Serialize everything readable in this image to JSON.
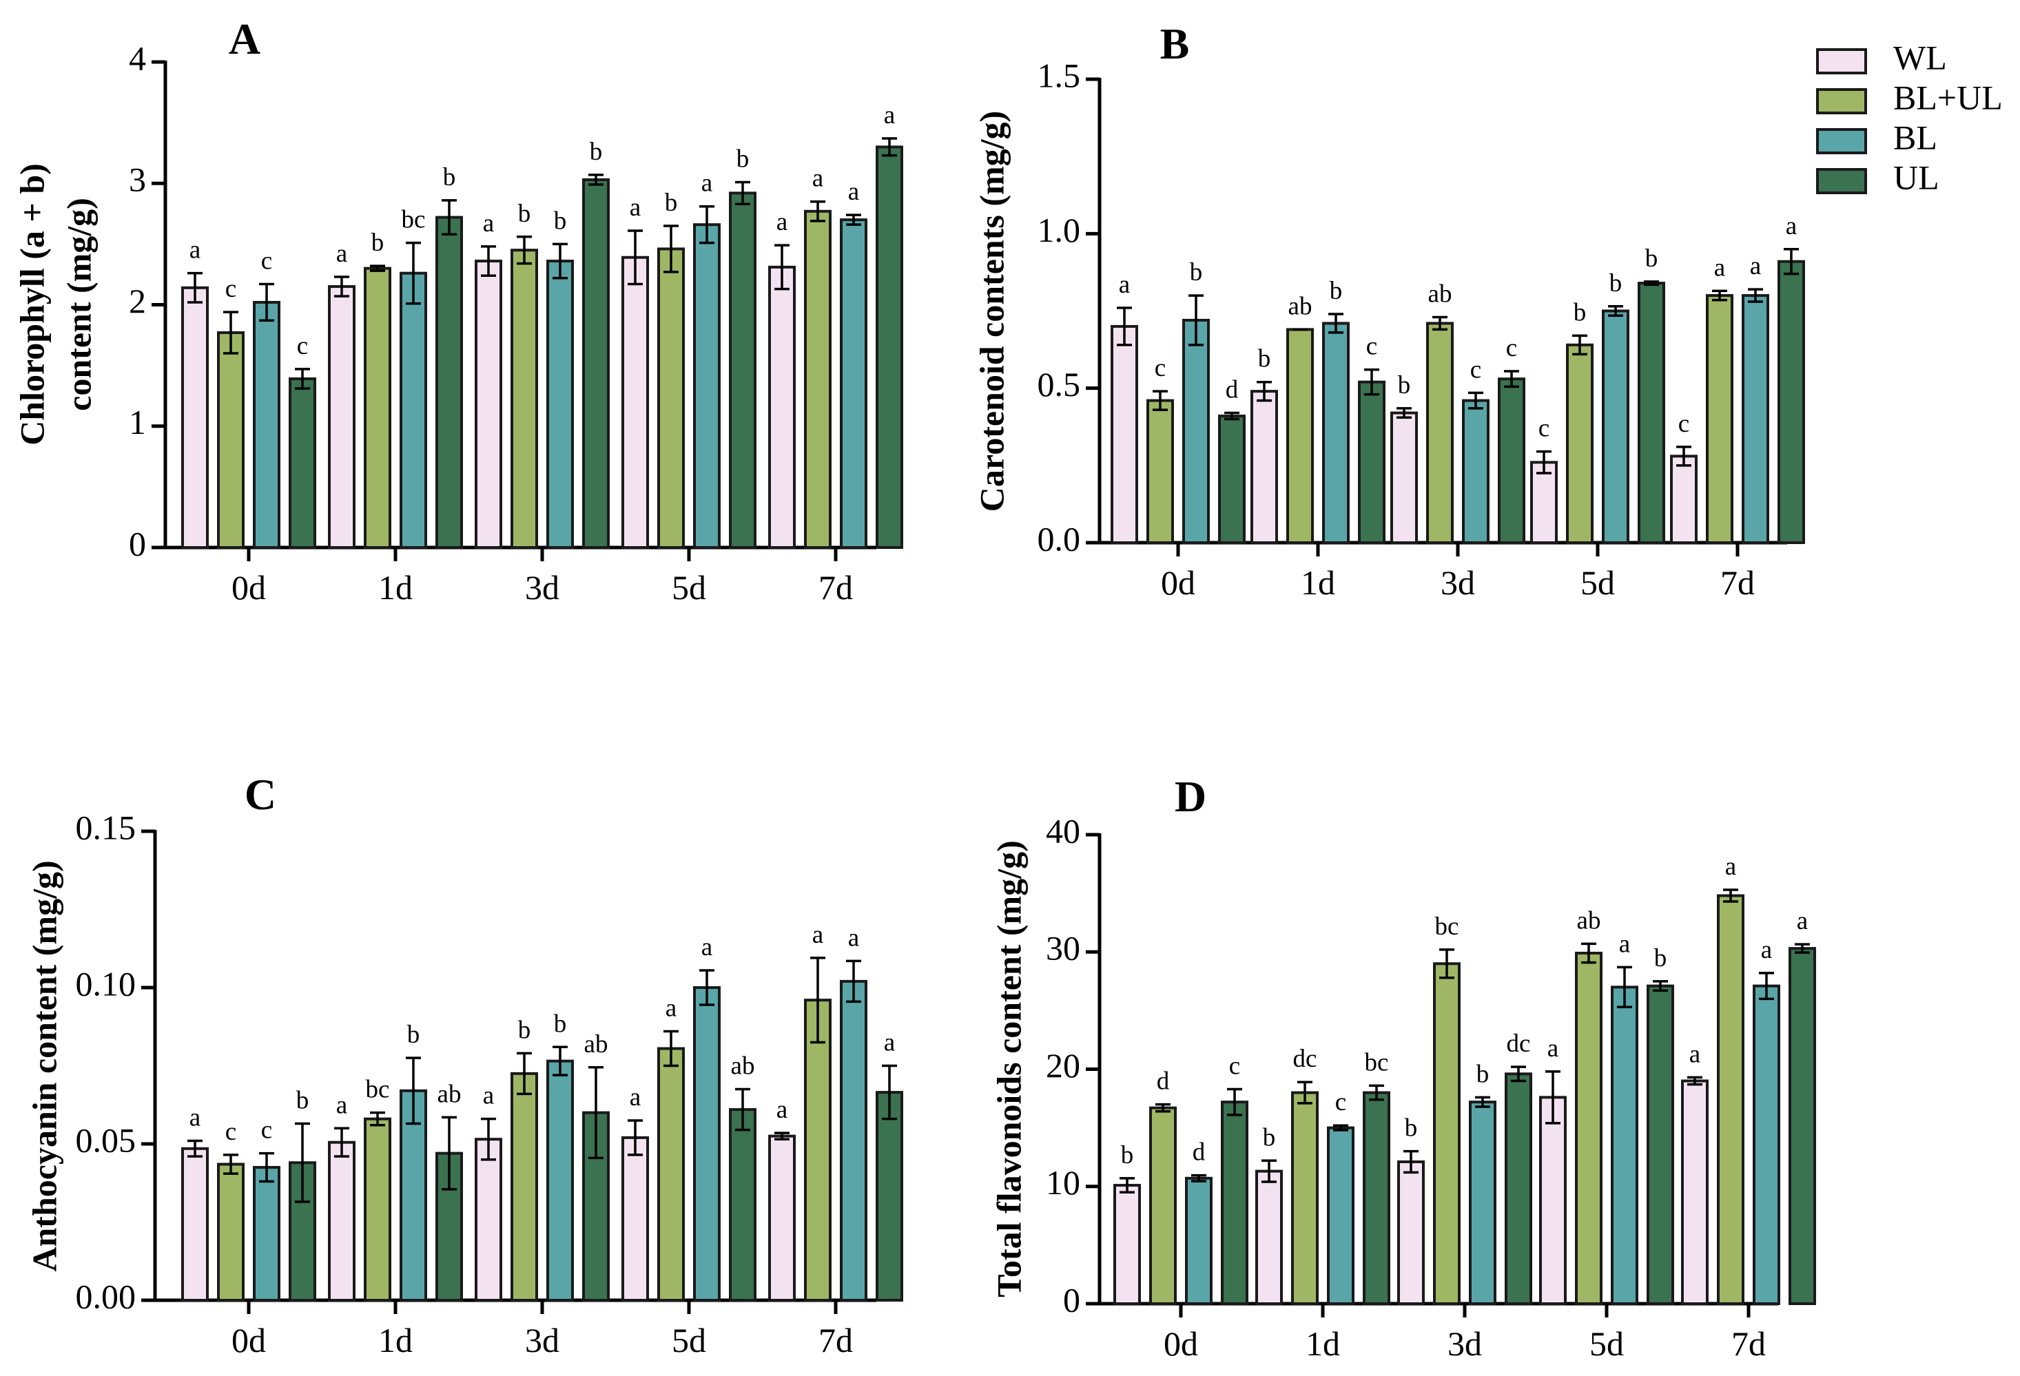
{
  "chart_data": [
    {
      "type": "bar",
      "panel": "A",
      "title": "A",
      "xlabel": "",
      "ylabel": "Chlorophyll (a + b) content (mg/g)",
      "ylabel_lines": [
        "Chlorophyll (a + b)",
        "content (mg/g)"
      ],
      "ylim": [
        0,
        4
      ],
      "yticks": [
        "0",
        "1",
        "2",
        "3",
        "4"
      ],
      "categories": [
        "0d",
        "1d",
        "3d",
        "5d",
        "7d"
      ],
      "series": [
        {
          "name": "WL",
          "values": [
            2.14,
            2.15,
            2.36,
            2.39,
            2.31
          ],
          "errors": [
            0.12,
            0.08,
            0.12,
            0.22,
            0.18
          ],
          "labels": [
            "a",
            "a",
            "a",
            "a",
            "a"
          ]
        },
        {
          "name": "BL+UL",
          "values": [
            1.77,
            2.3,
            2.45,
            2.46,
            2.77
          ],
          "errors": [
            0.17,
            0.02,
            0.11,
            0.19,
            0.08
          ],
          "labels": [
            "c",
            "b",
            "b",
            "b",
            "a"
          ]
        },
        {
          "name": "BL",
          "values": [
            2.02,
            2.26,
            2.36,
            2.66,
            2.7
          ],
          "errors": [
            0.15,
            0.25,
            0.14,
            0.15,
            0.04
          ],
          "labels": [
            "c",
            "bc",
            "b",
            "a",
            "a"
          ]
        },
        {
          "name": "UL",
          "values": [
            1.39,
            2.72,
            3.03,
            2.92,
            3.3
          ],
          "errors": [
            0.08,
            0.14,
            0.04,
            0.09,
            0.07
          ],
          "labels": [
            "c",
            "b",
            "b",
            "b",
            "a"
          ]
        }
      ]
    },
    {
      "type": "bar",
      "panel": "B",
      "title": "B",
      "xlabel": "",
      "ylabel": "Carotenoid contents (mg/g)",
      "ylabel_lines": [
        "Carotenoid contents (mg/g)"
      ],
      "ylim": [
        0,
        1.5
      ],
      "yticks": [
        "0.0",
        "0.5",
        "1.0",
        "1.5"
      ],
      "categories": [
        "0d",
        "1d",
        "3d",
        "5d",
        "7d"
      ],
      "series": [
        {
          "name": "WL",
          "values": [
            0.7,
            0.49,
            0.42,
            0.26,
            0.28
          ],
          "errors": [
            0.06,
            0.03,
            0.015,
            0.035,
            0.03
          ],
          "labels": [
            "a",
            "b",
            "b",
            "c",
            "c"
          ]
        },
        {
          "name": "BL+UL",
          "values": [
            0.46,
            0.69,
            0.71,
            0.64,
            0.8
          ],
          "errors": [
            0.03,
            0.0,
            0.02,
            0.03,
            0.015
          ],
          "labels": [
            "c",
            "ab",
            "ab",
            "b",
            "a"
          ]
        },
        {
          "name": "BL",
          "values": [
            0.72,
            0.71,
            0.46,
            0.75,
            0.8
          ],
          "errors": [
            0.08,
            0.03,
            0.025,
            0.015,
            0.02
          ],
          "labels": [
            "b",
            "b",
            "c",
            "b",
            "a"
          ]
        },
        {
          "name": "UL",
          "values": [
            0.41,
            0.52,
            0.53,
            0.84,
            0.91
          ],
          "errors": [
            0.01,
            0.04,
            0.025,
            0.005,
            0.04
          ],
          "labels": [
            "d",
            "c",
            "c",
            "b",
            "a"
          ]
        }
      ]
    },
    {
      "type": "bar",
      "panel": "C",
      "title": "C",
      "xlabel": "",
      "ylabel": "Anthocyanin content (mg/g)",
      "ylabel_lines": [
        "Anthocyanin content (mg/g)"
      ],
      "ylim": [
        0,
        0.15
      ],
      "yticks": [
        "0.00",
        "0.05",
        "0.10",
        "0.15"
      ],
      "categories": [
        "0d",
        "1d",
        "3d",
        "5d",
        "7d"
      ],
      "series": [
        {
          "name": "WL",
          "values": [
            0.0485,
            0.0505,
            0.0515,
            0.052,
            0.0525
          ],
          "errors": [
            0.0025,
            0.0045,
            0.0065,
            0.0055,
            0.001
          ],
          "labels": [
            "a",
            "a",
            "a",
            "a",
            "a"
          ]
        },
        {
          "name": "BL+UL",
          "values": [
            0.0435,
            0.058,
            0.0725,
            0.0805,
            0.096
          ],
          "errors": [
            0.003,
            0.002,
            0.0065,
            0.0055,
            0.0135
          ],
          "labels": [
            "c",
            "bc",
            "b",
            "a",
            "a"
          ]
        },
        {
          "name": "BL",
          "values": [
            0.0425,
            0.067,
            0.0765,
            0.1,
            0.102
          ],
          "errors": [
            0.0045,
            0.0105,
            0.0045,
            0.0055,
            0.0065
          ],
          "labels": [
            "c",
            "b",
            "b",
            "a",
            "a"
          ]
        },
        {
          "name": "UL",
          "values": [
            0.044,
            0.047,
            0.06,
            0.061,
            0.0665
          ],
          "errors": [
            0.0125,
            0.0115,
            0.0145,
            0.0065,
            0.0085
          ],
          "labels": [
            "b",
            "ab",
            "ab",
            "ab",
            "a"
          ]
        }
      ]
    },
    {
      "type": "bar",
      "panel": "D",
      "title": "D",
      "xlabel": "",
      "ylabel": "Total flavonoids content (mg/g)",
      "ylabel_lines": [
        "Total flavonoids content (mg/g)"
      ],
      "ylim": [
        0,
        40
      ],
      "yticks": [
        "0",
        "10",
        "20",
        "30",
        "40"
      ],
      "categories": [
        "0d",
        "1d",
        "3d",
        "5d",
        "7d"
      ],
      "series": [
        {
          "name": "WL",
          "values": [
            10.1,
            11.3,
            12.1,
            17.6,
            19.0
          ],
          "errors": [
            0.6,
            0.9,
            0.9,
            2.2,
            0.3
          ],
          "labels": [
            "b",
            "b",
            "b",
            "a",
            "a"
          ]
        },
        {
          "name": "BL+UL",
          "values": [
            16.7,
            18.0,
            29.0,
            29.9,
            34.8
          ],
          "errors": [
            0.3,
            0.9,
            1.2,
            0.8,
            0.5
          ],
          "labels": [
            "d",
            "dc",
            "bc",
            "ab",
            "a"
          ]
        },
        {
          "name": "BL",
          "values": [
            10.7,
            15.0,
            17.2,
            27.0,
            27.1
          ],
          "errors": [
            0.25,
            0.2,
            0.4,
            1.7,
            1.1
          ],
          "labels": [
            "d",
            "c",
            "b",
            "a",
            "a"
          ]
        },
        {
          "name": "UL",
          "values": [
            17.2,
            18.0,
            19.6,
            27.1,
            30.3
          ],
          "errors": [
            1.1,
            0.6,
            0.6,
            0.4,
            0.35
          ],
          "labels": [
            "c",
            "bc",
            "dc",
            "b",
            "a"
          ]
        }
      ]
    }
  ],
  "legend": {
    "placement": "top-right",
    "entries": [
      {
        "name": "WL",
        "color": "#f3e3f1"
      },
      {
        "name": "BL+UL",
        "color": "#9fb765"
      },
      {
        "name": "BL",
        "color": "#5aa5a8"
      },
      {
        "name": "UL",
        "color": "#3b7250"
      }
    ]
  }
}
